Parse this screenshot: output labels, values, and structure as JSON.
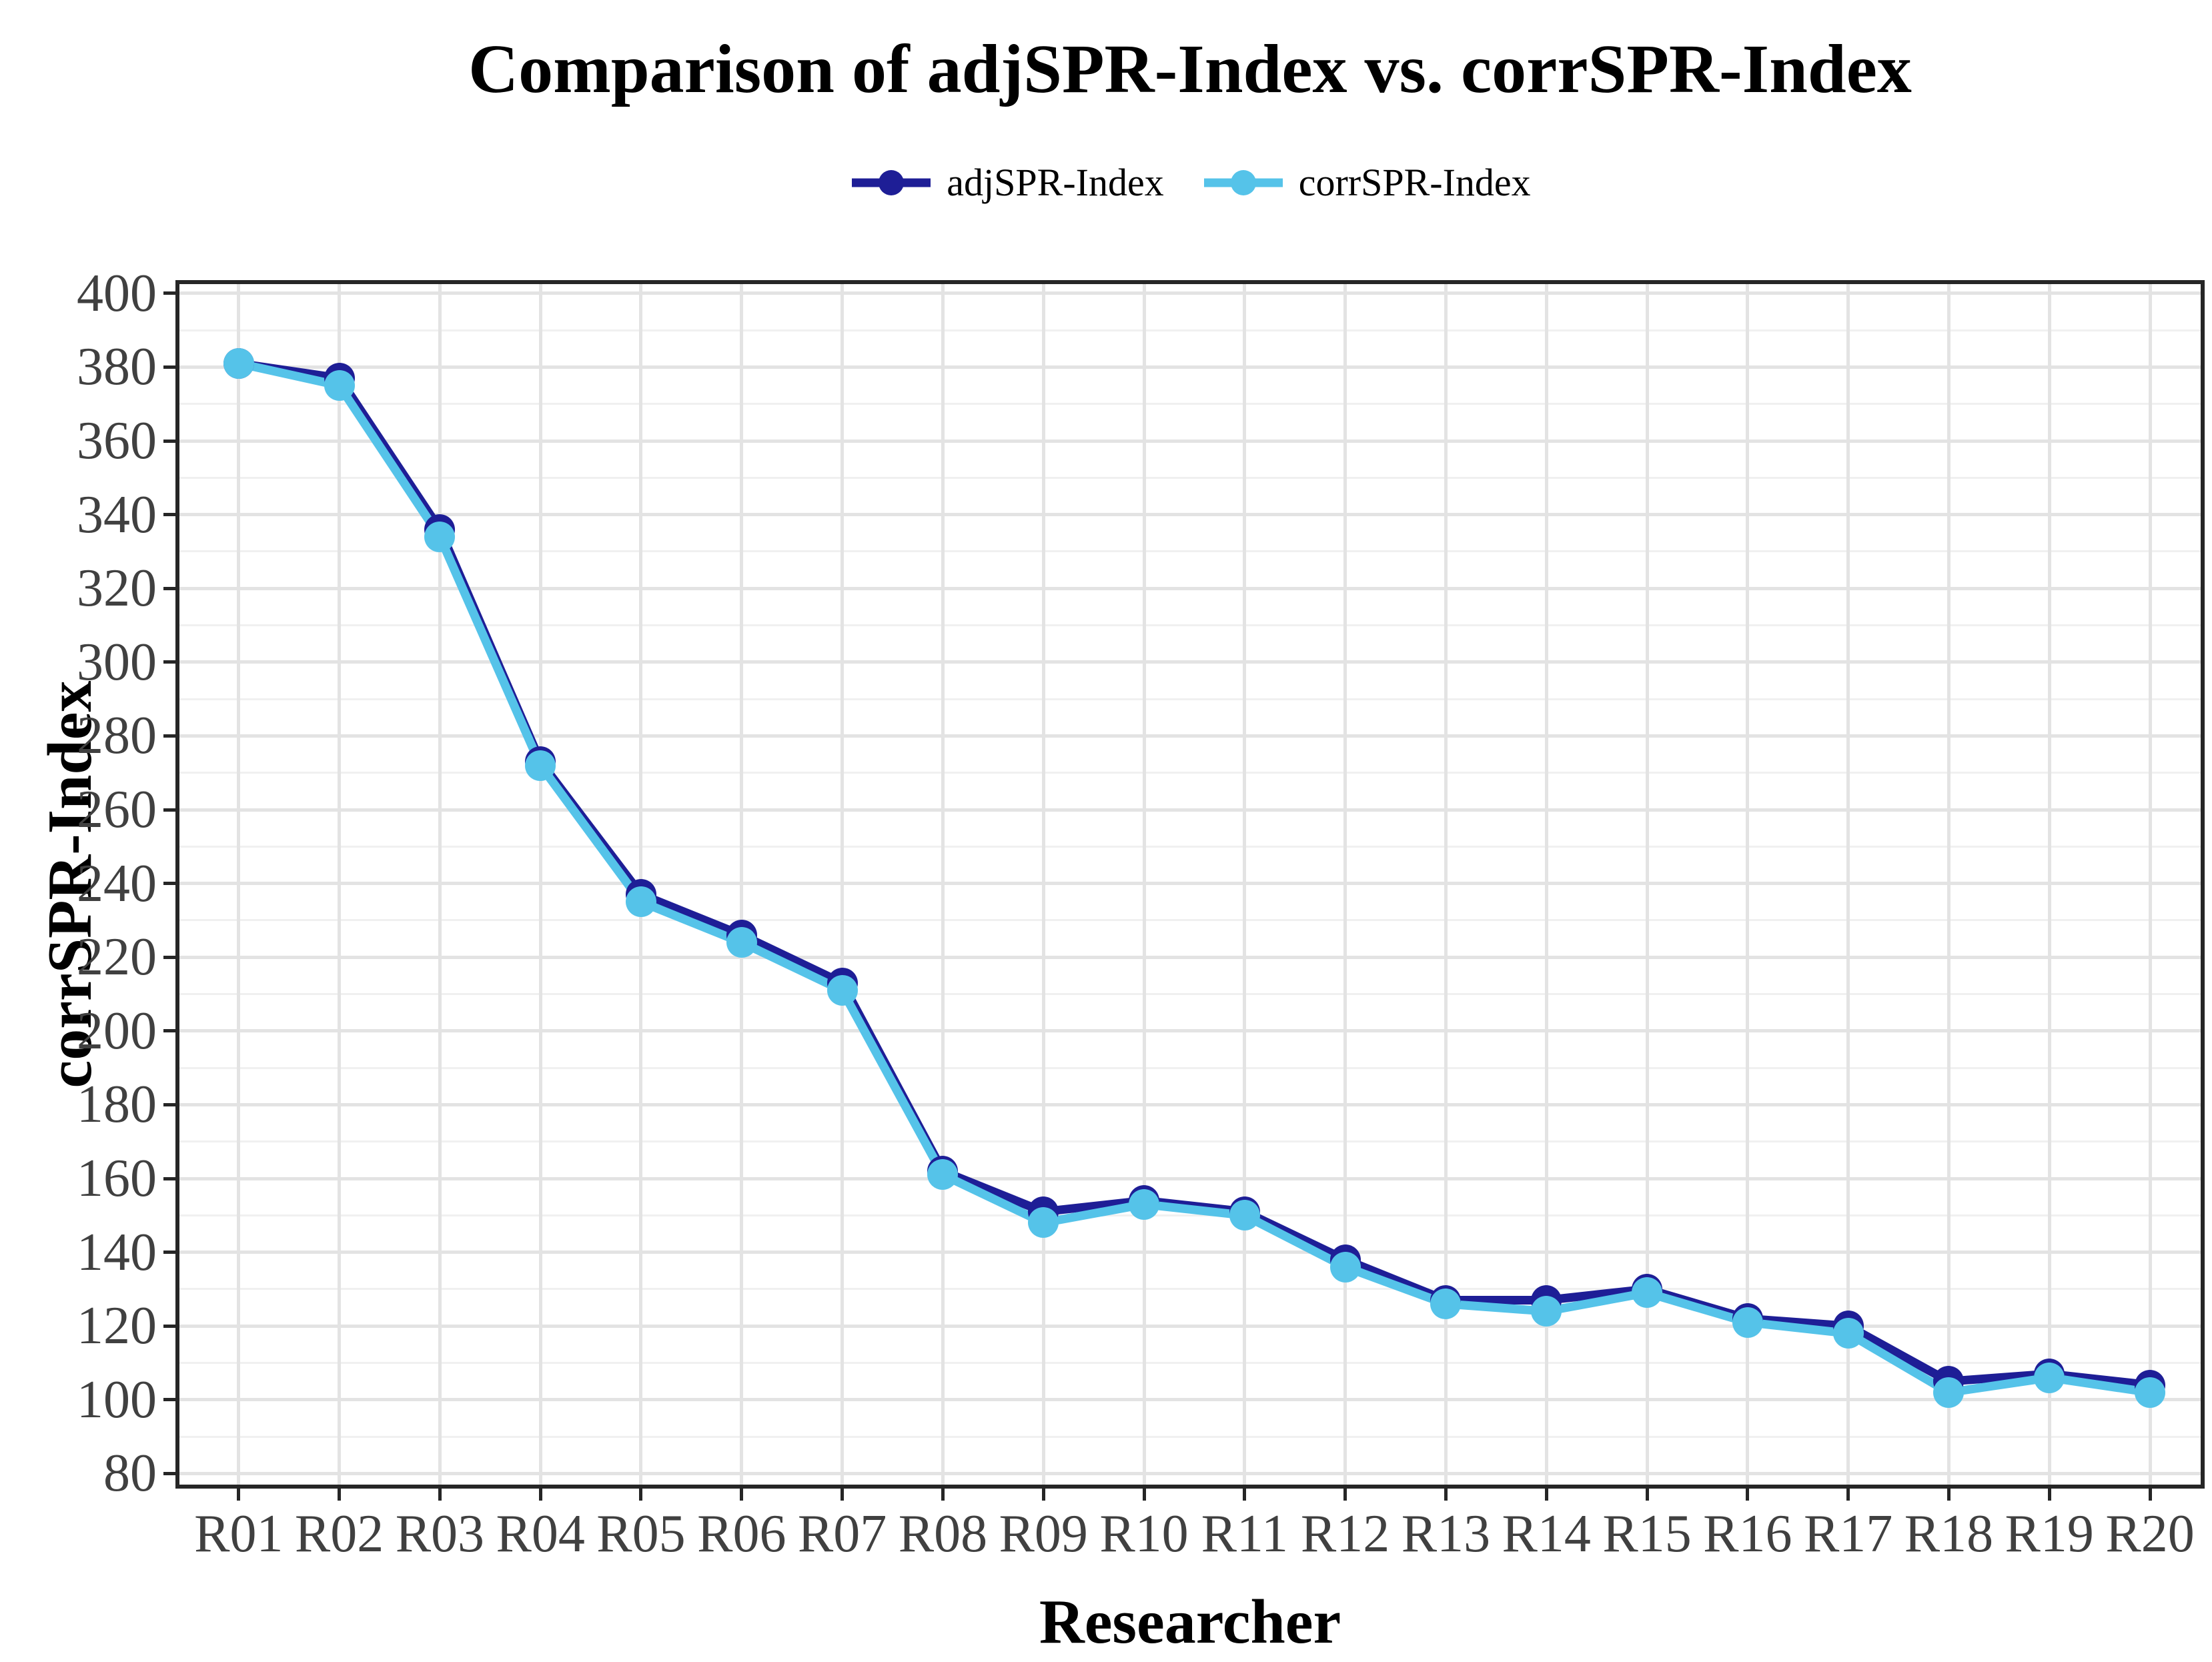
{
  "title": "Comparison of adjSPR-Index vs. corrSPR-Index",
  "legend": {
    "items": [
      {
        "label": "adjSPR-Index",
        "color": "#1e1e96"
      },
      {
        "label": "corrSPR-Index",
        "color": "#55c3e9"
      }
    ]
  },
  "chart_data": {
    "type": "line",
    "title": "Comparison of adjSPR-Index vs. corrSPR-Index",
    "xlabel": "Researcher",
    "ylabel": "corrSPR-Index",
    "categories": [
      "R01",
      "R02",
      "R03",
      "R04",
      "R05",
      "R06",
      "R07",
      "R08",
      "R09",
      "R10",
      "R11",
      "R12",
      "R13",
      "R14",
      "R15",
      "R16",
      "R17",
      "R18",
      "R19",
      "R20"
    ],
    "series": [
      {
        "name": "adjSPR-Index",
        "color": "#1e1e96",
        "values": [
          381,
          377,
          336,
          273,
          237,
          226,
          213,
          162,
          151,
          154,
          151,
          138,
          127,
          127,
          130,
          122,
          120,
          105,
          107,
          104
        ]
      },
      {
        "name": "corrSPR-Index",
        "color": "#55c3e9",
        "values": [
          381,
          375,
          334,
          272,
          235,
          224,
          211,
          161,
          148,
          153,
          150,
          136,
          126,
          124,
          129,
          121,
          118,
          102,
          106,
          102
        ]
      }
    ],
    "ylim": [
      77,
      402.5
    ],
    "yticks": [
      80,
      100,
      120,
      140,
      160,
      180,
      200,
      220,
      240,
      260,
      280,
      300,
      320,
      340,
      360,
      380,
      400
    ],
    "ytick_step": 20,
    "grid": "major and minor horizontal, major vertical per category",
    "legend_position": "top-center",
    "marker": "filled-circle-on-line"
  }
}
